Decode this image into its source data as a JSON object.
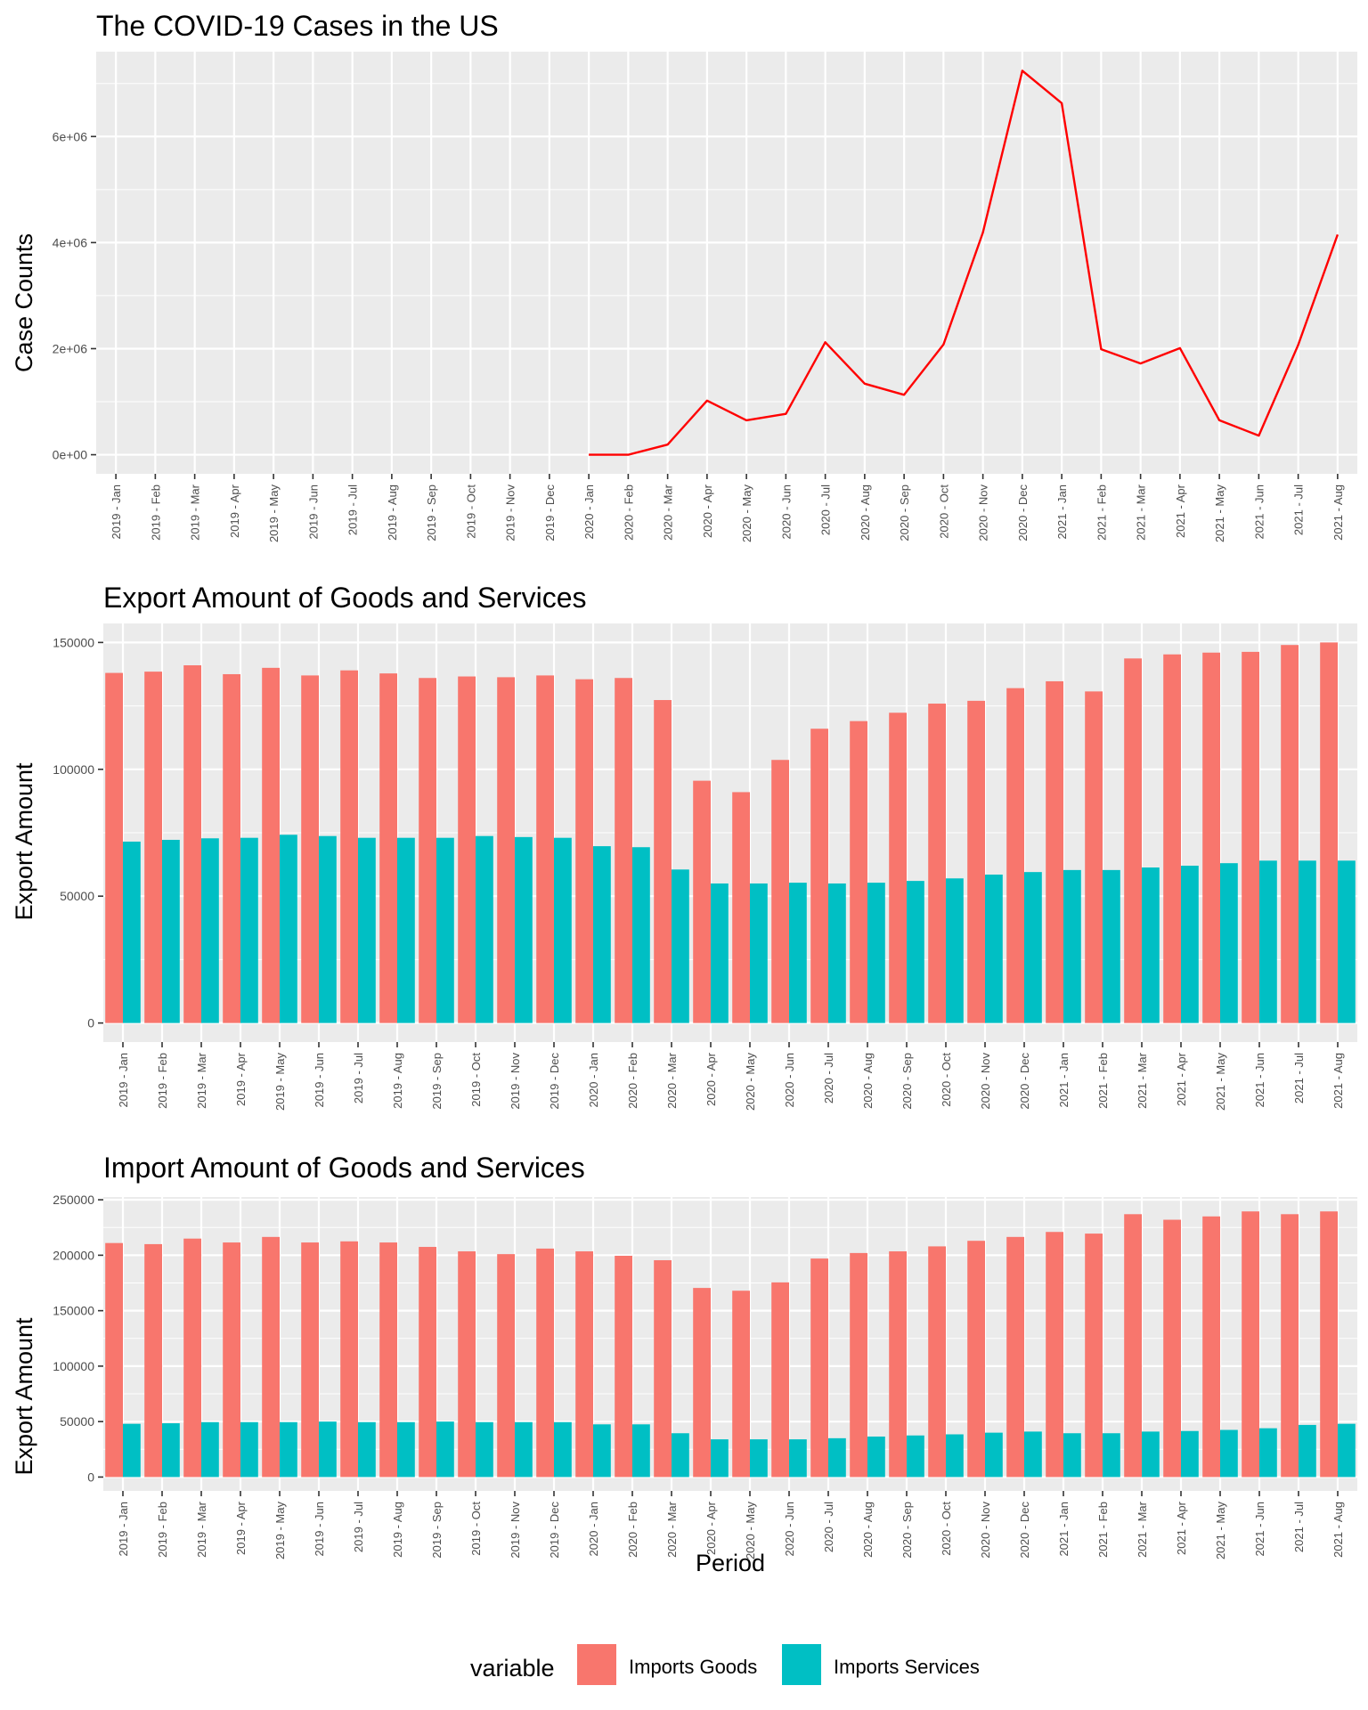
{
  "legend": {
    "title": "variable",
    "position": "bottom",
    "items": [
      {
        "label": "Imports Goods",
        "color": "#F8766D"
      },
      {
        "label": "Imports Services",
        "color": "#00BFC4"
      }
    ]
  },
  "chart_data": [
    {
      "type": "line",
      "title": "The COVID-19 Cases in the US",
      "xlabel": "",
      "ylabel": "Case Counts",
      "categories": [
        "2019 - Jan",
        "2019 - Feb",
        "2019 - Mar",
        "2019 - Apr",
        "2019 - May",
        "2019 - Jun",
        "2019 - Jul",
        "2019 - Aug",
        "2019 - Sep",
        "2019 - Oct",
        "2019 - Nov",
        "2019 - Dec",
        "2020 - Jan",
        "2020 - Feb",
        "2020 - Mar",
        "2020 - Apr",
        "2020 - May",
        "2020 - Jun",
        "2020 - Jul",
        "2020 - Aug",
        "2020 - Sep",
        "2020 - Oct",
        "2020 - Nov",
        "2020 - Dec",
        "2021 - Jan",
        "2021 - Feb",
        "2021 - Mar",
        "2021 - Apr",
        "2021 - May",
        "2021 - Jun",
        "2021 - Jul",
        "2021 - Aug"
      ],
      "series": [
        {
          "color": "#FF0000",
          "values": [
            null,
            null,
            null,
            null,
            null,
            null,
            null,
            null,
            null,
            null,
            null,
            null,
            10,
            20,
            190000,
            1020000,
            650000,
            770000,
            2120000,
            1340000,
            1130000,
            2080000,
            4190000,
            7240000,
            6630000,
            1990000,
            1720000,
            2010000,
            650000,
            360000,
            2070000,
            4150000
          ]
        }
      ],
      "yticks": [
        0,
        2000000,
        4000000,
        6000000
      ],
      "ytick_labels": [
        "0e+00",
        "2e+06",
        "4e+06",
        "6e+06"
      ],
      "ylim": [
        -360000,
        7600000
      ],
      "grid": true
    },
    {
      "type": "bar",
      "title": "Export Amount of Goods and Services",
      "xlabel": "",
      "ylabel": "Export Amount",
      "categories": [
        "2019 - Jan",
        "2019 - Feb",
        "2019 - Mar",
        "2019 - Apr",
        "2019 - May",
        "2019 - Jun",
        "2019 - Jul",
        "2019 - Aug",
        "2019 - Sep",
        "2019 - Oct",
        "2019 - Nov",
        "2019 - Dec",
        "2020 - Jan",
        "2020 - Feb",
        "2020 - Mar",
        "2020 - Apr",
        "2020 - May",
        "2020 - Jun",
        "2020 - Jul",
        "2020 - Aug",
        "2020 - Sep",
        "2020 - Oct",
        "2020 - Nov",
        "2020 - Dec",
        "2021 - Jan",
        "2021 - Feb",
        "2021 - Mar",
        "2021 - Apr",
        "2021 - May",
        "2021 - Jun",
        "2021 - Jul",
        "2021 - Aug"
      ],
      "series": [
        {
          "name": "Imports Goods",
          "color": "#F8766D",
          "values": [
            138000,
            138500,
            141000,
            137500,
            140000,
            137000,
            139000,
            137800,
            136000,
            136600,
            136300,
            137000,
            135500,
            136000,
            127300,
            95500,
            91000,
            103700,
            116000,
            119000,
            122300,
            125900,
            127000,
            132000,
            134700,
            130700,
            143700,
            145300,
            146000,
            146300,
            149000,
            150000
          ]
        },
        {
          "name": "Imports Services",
          "color": "#00BFC4",
          "values": [
            71500,
            72200,
            72800,
            73000,
            74200,
            73700,
            73000,
            73000,
            73000,
            73700,
            73300,
            73000,
            69700,
            69300,
            60500,
            55000,
            55000,
            55300,
            55000,
            55300,
            56000,
            57000,
            58500,
            59500,
            60300,
            60300,
            61300,
            62000,
            63000,
            64000,
            64000,
            64000
          ]
        }
      ],
      "yticks": [
        0,
        50000,
        100000,
        150000
      ],
      "ytick_labels": [
        "0",
        "50000",
        "100000",
        "150000"
      ],
      "ylim": [
        -7500,
        157500
      ],
      "grid": true
    },
    {
      "type": "bar",
      "title": "Import Amount of Goods and Services",
      "xlabel": "Period",
      "ylabel": "Export Amount",
      "categories": [
        "2019 - Jan",
        "2019 - Feb",
        "2019 - Mar",
        "2019 - Apr",
        "2019 - May",
        "2019 - Jun",
        "2019 - Jul",
        "2019 - Aug",
        "2019 - Sep",
        "2019 - Oct",
        "2019 - Nov",
        "2019 - Dec",
        "2020 - Jan",
        "2020 - Feb",
        "2020 - Mar",
        "2020 - Apr",
        "2020 - May",
        "2020 - Jun",
        "2020 - Jul",
        "2020 - Aug",
        "2020 - Sep",
        "2020 - Oct",
        "2020 - Nov",
        "2020 - Dec",
        "2021 - Jan",
        "2021 - Feb",
        "2021 - Mar",
        "2021 - Apr",
        "2021 - May",
        "2021 - Jun",
        "2021 - Jul",
        "2021 - Aug"
      ],
      "series": [
        {
          "name": "Imports Goods",
          "color": "#F8766D",
          "values": [
            211000,
            210000,
            215000,
            211500,
            216500,
            211500,
            212500,
            211500,
            207500,
            203500,
            201000,
            206000,
            203500,
            199500,
            195500,
            170500,
            168000,
            175500,
            197000,
            202000,
            203500,
            208000,
            213000,
            216500,
            221000,
            219500,
            237000,
            232000,
            235000,
            239500,
            237000,
            239500
          ]
        },
        {
          "name": "Imports Services",
          "color": "#00BFC4",
          "values": [
            48000,
            48500,
            49500,
            49500,
            49500,
            50000,
            49500,
            49500,
            50000,
            49500,
            49500,
            49500,
            47500,
            47500,
            39500,
            34000,
            34000,
            34000,
            35000,
            36500,
            37500,
            38500,
            40000,
            41000,
            39500,
            39500,
            41000,
            41500,
            42500,
            44000,
            47000,
            48000
          ]
        }
      ],
      "yticks": [
        0,
        50000,
        100000,
        150000,
        200000,
        250000
      ],
      "ytick_labels": [
        "0",
        "50000",
        "100000",
        "150000",
        "200000",
        "250000"
      ],
      "ylim": [
        -12500,
        252500
      ],
      "grid": true
    }
  ]
}
